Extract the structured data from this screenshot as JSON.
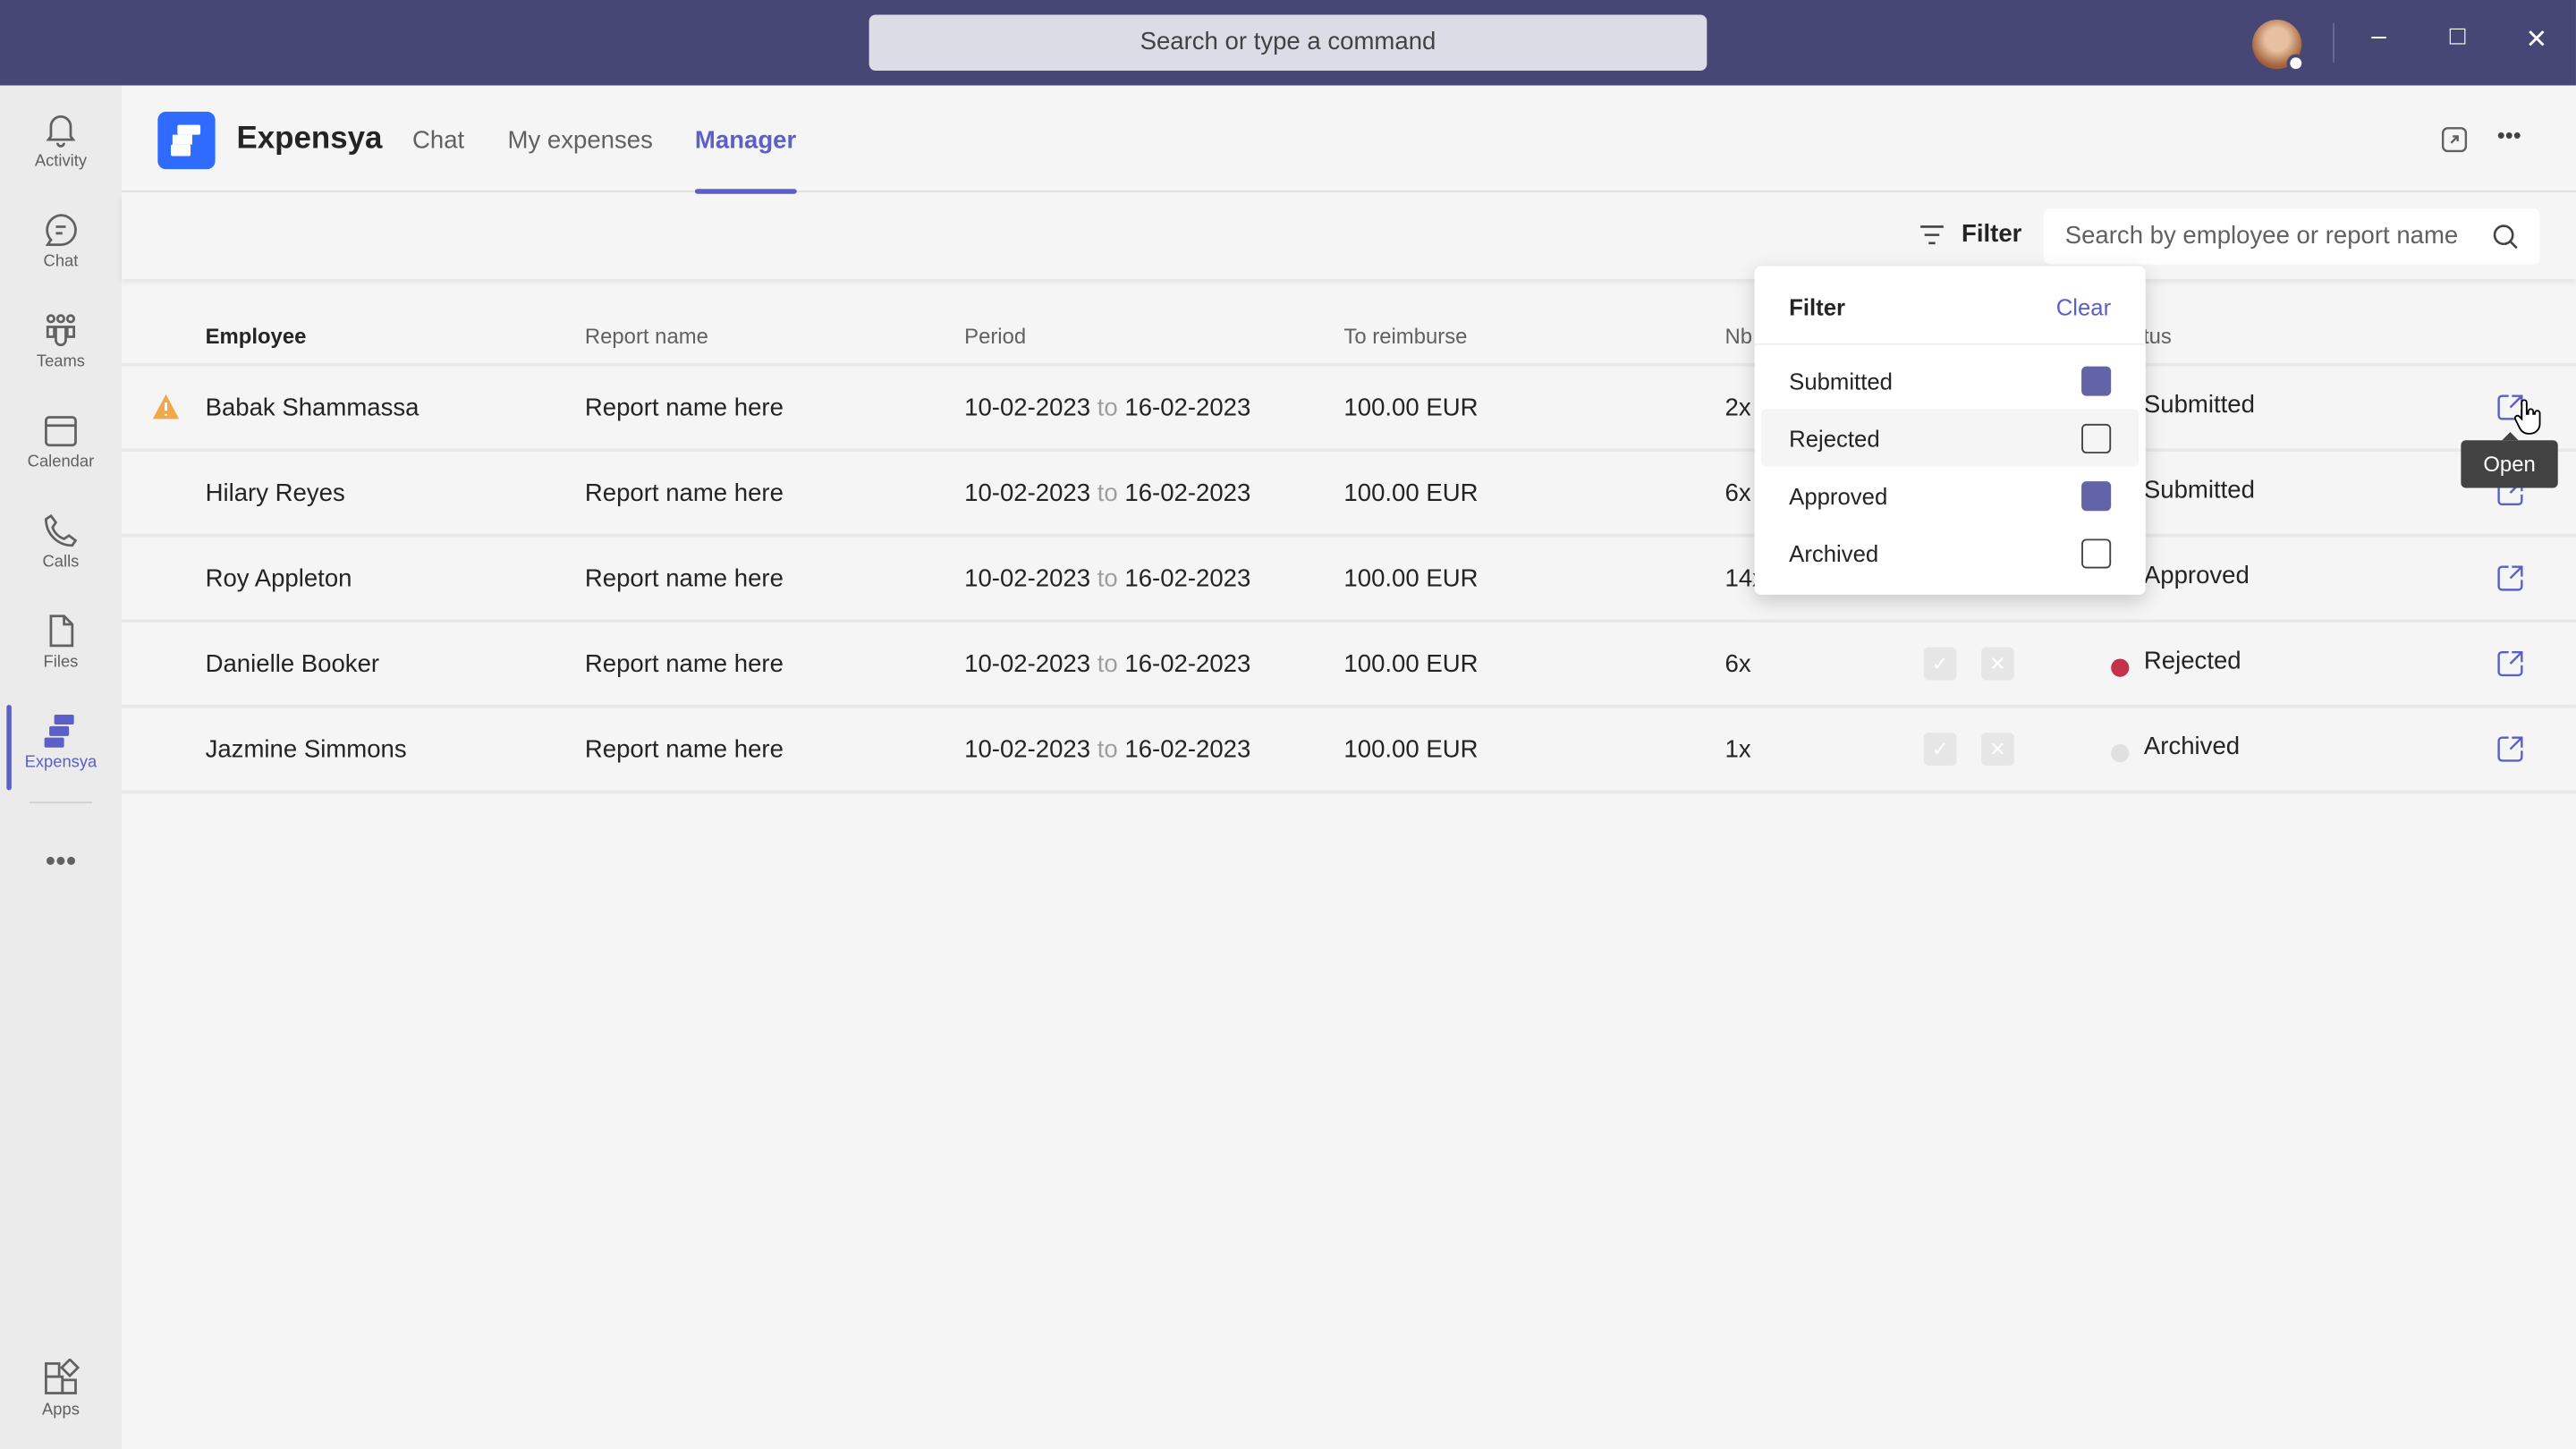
{
  "titlebar": {
    "search_placeholder": "Search or type a command"
  },
  "rail": [
    {
      "label": "Activity",
      "icon": "bell-icon"
    },
    {
      "label": "Chat",
      "icon": "chat-icon"
    },
    {
      "label": "Teams",
      "icon": "teams-icon"
    },
    {
      "label": "Calendar",
      "icon": "calendar-icon"
    },
    {
      "label": "Calls",
      "icon": "phone-icon"
    },
    {
      "label": "Files",
      "icon": "file-icon"
    },
    {
      "label": "Expensya",
      "icon": "expensya-icon",
      "active": true
    },
    {
      "label": "Apps",
      "icon": "apps-icon"
    }
  ],
  "app": {
    "name": "Expensya",
    "tabs": [
      {
        "label": "Chat"
      },
      {
        "label": "My expenses"
      },
      {
        "label": "Manager",
        "active": true
      }
    ]
  },
  "toolbar": {
    "filter_label": "Filter",
    "search_placeholder": "Search by employee or report name"
  },
  "table": {
    "columns": [
      "Employee",
      "Report name",
      "Period",
      "To reimburse",
      "Nb",
      "Status"
    ],
    "period_sep": "to",
    "rows": [
      {
        "employee": "Babak Shammassa",
        "warning": true,
        "report": "Report name here",
        "from": "10-02-2023",
        "to": "16-02-2023",
        "amount": "100.00 EUR",
        "nb": "2x",
        "status": "Submitted"
      },
      {
        "employee": "Hilary Reyes",
        "report": "Report name here",
        "from": "10-02-2023",
        "to": "16-02-2023",
        "amount": "100.00 EUR",
        "nb": "6x",
        "status": "Submitted"
      },
      {
        "employee": "Roy Appleton",
        "report": "Report name here",
        "from": "10-02-2023",
        "to": "16-02-2023",
        "amount": "100.00 EUR",
        "nb": "14x",
        "status": "Approved"
      },
      {
        "employee": "Danielle Booker",
        "report": "Report name here",
        "from": "10-02-2023",
        "to": "16-02-2023",
        "amount": "100.00 EUR",
        "nb": "6x",
        "status": "Rejected",
        "status_color": "#c4314b"
      },
      {
        "employee": "Jazmine Simmons",
        "report": "Report name here",
        "from": "10-02-2023",
        "to": "16-02-2023",
        "amount": "100.00 EUR",
        "nb": "1x",
        "status": "Archived",
        "status_color": "#e0e0e0"
      }
    ]
  },
  "filter_dropdown": {
    "title": "Filter",
    "clear": "Clear",
    "options": [
      {
        "label": "Submitted",
        "checked": true
      },
      {
        "label": "Rejected",
        "checked": false
      },
      {
        "label": "Approved",
        "checked": true
      },
      {
        "label": "Archived",
        "checked": false
      }
    ]
  },
  "tooltip": "Open",
  "colors": {
    "accent": "#5b5fc7",
    "titlebar": "#464775",
    "brand": "#2f6bff"
  }
}
